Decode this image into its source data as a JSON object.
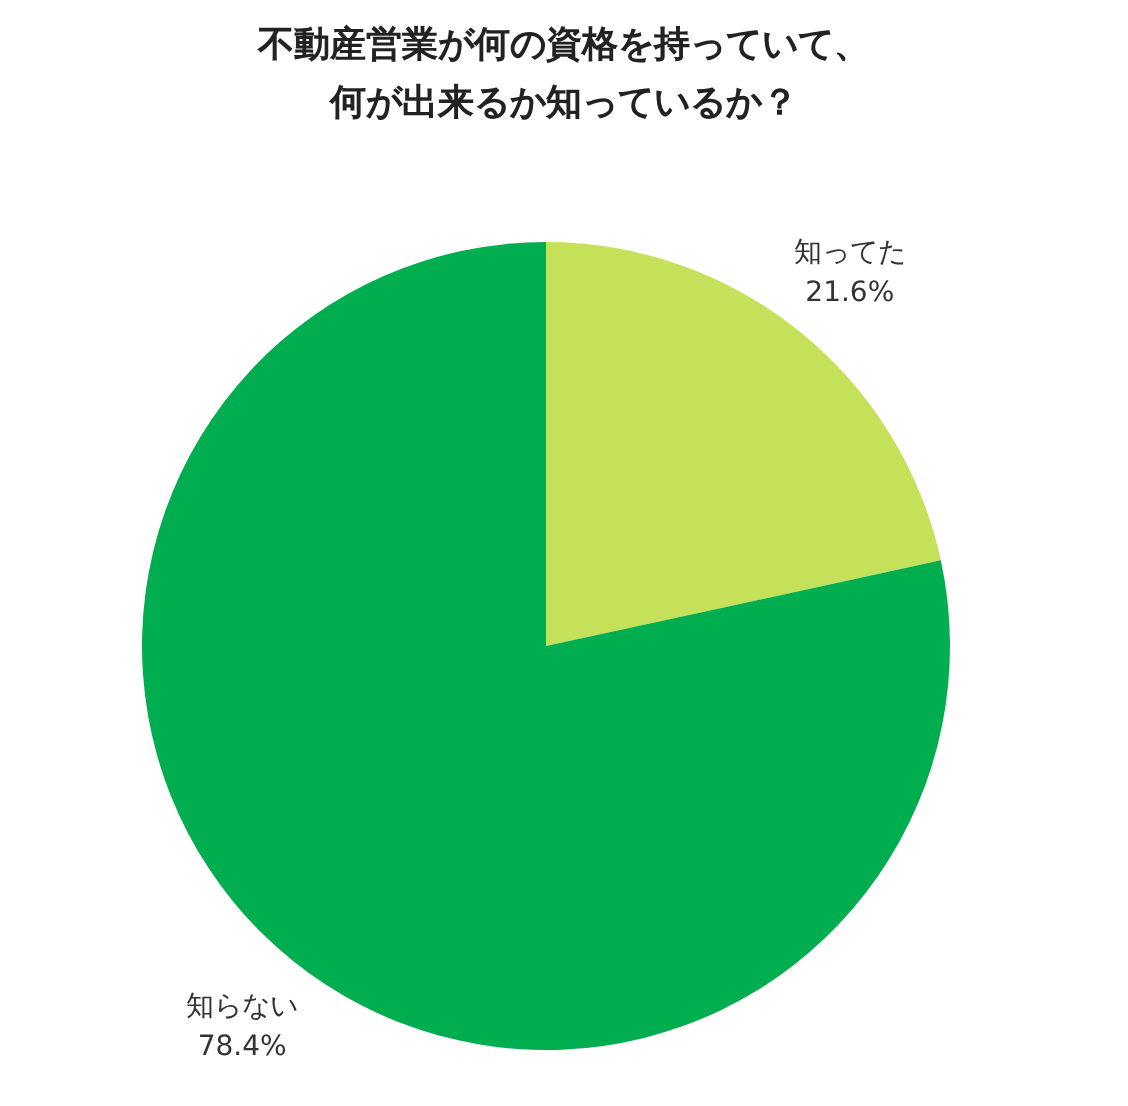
{
  "chart_data": {
    "type": "pie",
    "title": "不動産営業が何の資格を持っていて、何が出来るか知っているか？",
    "categories": [
      "知ってた",
      "知らない"
    ],
    "values": [
      21.6,
      78.4
    ],
    "colors": [
      "#c5e15a",
      "#00ad4f"
    ],
    "value_labels": [
      "21.6%",
      "78.4%"
    ],
    "legend": false
  }
}
